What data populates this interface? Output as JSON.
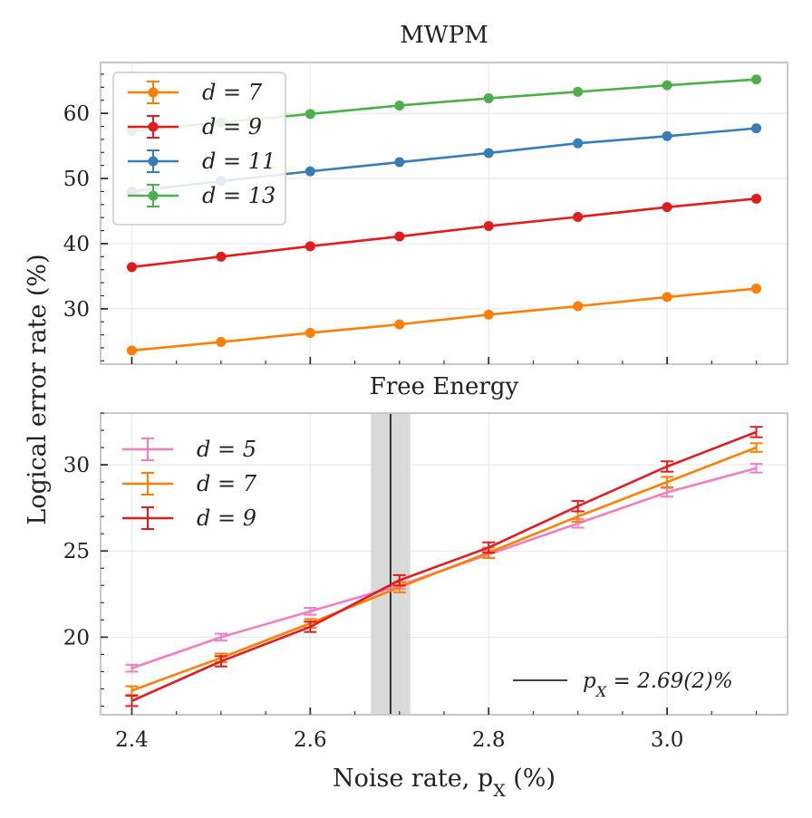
{
  "ylabel": "Logical error rate (%)",
  "colors": {
    "d5": "#f17fbf",
    "d7": "#ff7f00",
    "d9": "#e41a1c",
    "d11": "#377eb8",
    "d13": "#4daf4a",
    "band": "#d9d9d9",
    "vline": "#000000"
  },
  "chart_data": [
    {
      "type": "line",
      "title": "MWPM",
      "xlabel": "",
      "ylabel": "Logical error rate (%)",
      "x": [
        2.4,
        2.5,
        2.6,
        2.7,
        2.8,
        2.9,
        3.0,
        3.1
      ],
      "xlim": [
        2.365,
        3.135
      ],
      "ylim": [
        21.5,
        67.8
      ],
      "yticks": [
        30,
        40,
        50,
        60
      ],
      "xticks": [
        2.4,
        2.6,
        2.8,
        3.0
      ],
      "legend_position": "top-left",
      "series": [
        {
          "name": "d = 7",
          "color_key": "d7",
          "values": [
            23.6,
            24.9,
            26.3,
            27.6,
            29.1,
            30.4,
            31.8,
            33.1
          ]
        },
        {
          "name": "d = 9",
          "color_key": "d9",
          "values": [
            36.4,
            38.0,
            39.6,
            41.1,
            42.7,
            44.1,
            45.6,
            46.9
          ]
        },
        {
          "name": "d = 11",
          "color_key": "d11",
          "values": [
            48.0,
            49.6,
            51.1,
            52.5,
            53.9,
            55.4,
            56.5,
            57.7
          ]
        },
        {
          "name": "d = 13",
          "color_key": "d13",
          "values": [
            57.3,
            58.6,
            59.9,
            61.2,
            62.3,
            63.3,
            64.3,
            65.2
          ]
        }
      ]
    },
    {
      "type": "line",
      "title": "Free Energy",
      "xlabel": "Noise rate, p_X (%)",
      "ylabel": "Logical error rate (%)",
      "x": [
        2.4,
        2.5,
        2.6,
        2.7,
        2.8,
        2.9,
        3.0,
        3.1
      ],
      "xlim": [
        2.365,
        3.135
      ],
      "ylim": [
        15.5,
        33.0
      ],
      "yticks": [
        20,
        25,
        30
      ],
      "xticks": [
        2.4,
        2.6,
        2.8,
        3.0
      ],
      "xtick_labels": [
        "2.4",
        "2.6",
        "2.8",
        "3.0"
      ],
      "legend_position": "top-left",
      "threshold": {
        "value": 2.69,
        "band": [
          2.668,
          2.712
        ],
        "label": "p_X = 2.69(2)%"
      },
      "series": [
        {
          "name": "d = 5",
          "color_key": "d5",
          "values": [
            18.2,
            20.0,
            21.5,
            23.0,
            24.8,
            26.6,
            28.4,
            29.8
          ],
          "errors": [
            0.2,
            0.2,
            0.2,
            0.2,
            0.2,
            0.25,
            0.25,
            0.25
          ]
        },
        {
          "name": "d = 7",
          "color_key": "d7",
          "values": [
            16.9,
            18.8,
            20.8,
            22.9,
            24.9,
            27.0,
            29.0,
            31.0
          ],
          "errors": [
            0.25,
            0.25,
            0.25,
            0.3,
            0.3,
            0.3,
            0.3,
            0.25
          ]
        },
        {
          "name": "d = 9",
          "color_key": "d9",
          "values": [
            16.3,
            18.6,
            20.6,
            23.3,
            25.2,
            27.6,
            29.9,
            31.9
          ],
          "errors": [
            0.3,
            0.3,
            0.3,
            0.3,
            0.3,
            0.3,
            0.3,
            0.3
          ]
        }
      ]
    }
  ]
}
